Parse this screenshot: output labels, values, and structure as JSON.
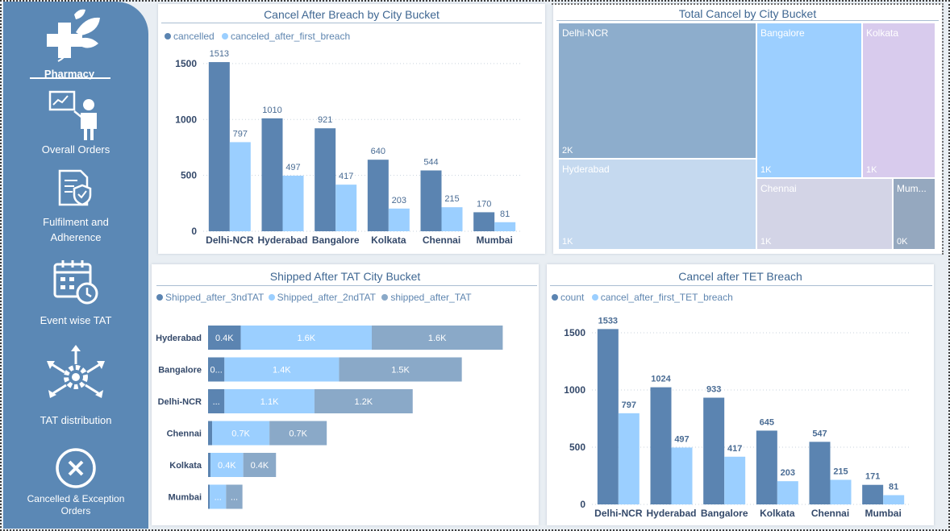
{
  "sidebar": {
    "brand_label": "Pharmacy",
    "items": [
      {
        "label": "Overall Orders",
        "icon": "presentation-person-icon"
      },
      {
        "label": "Fulfilment and Adherence",
        "icon": "shield-document-icon"
      },
      {
        "label": "Event wise TAT",
        "icon": "calendar-clock-icon"
      },
      {
        "label": "TAT  distribution",
        "icon": "gear-arrows-icon"
      },
      {
        "label": "Cancelled & Exception Orders",
        "icon": "cancel-circle-icon"
      }
    ]
  },
  "colors": {
    "dark_blue": "#5b84b1",
    "light_blue": "#9bcfff",
    "grey_blue": "#8aa9c8"
  },
  "panels": {
    "cancel_breach": {
      "title": "Cancel After Breach by City Bucket",
      "legend": [
        "cancelled",
        "canceled_after_first_breach"
      ]
    },
    "total_cancel": {
      "title": "Total Cancel by City Bucket"
    },
    "shipped_tat": {
      "title": "Shipped After TAT City Bucket",
      "legend": [
        "Shipped_after_3ndTAT",
        "Shipped_after_2ndTAT",
        "shipped_after_TAT"
      ]
    },
    "cancel_tet": {
      "title": "Cancel after TET Breach",
      "legend": [
        "count",
        "cancel_after_first_TET_breach"
      ]
    }
  },
  "chart_data": [
    {
      "type": "bar",
      "title": "Cancel After Breach by City Bucket",
      "categories": [
        "Delhi-NCR",
        "Hyderabad",
        "Bangalore",
        "Kolkata",
        "Chennai",
        "Mumbai"
      ],
      "series": [
        {
          "name": "cancelled",
          "values": [
            1513,
            1010,
            921,
            640,
            544,
            170
          ]
        },
        {
          "name": "canceled_after_first_breach",
          "values": [
            797,
            497,
            417,
            203,
            215,
            81
          ]
        }
      ],
      "yticks": [
        "0",
        "500",
        "1000",
        "1500"
      ],
      "ylim": [
        0,
        1600
      ],
      "grid": true,
      "legend": "top-left"
    },
    {
      "type": "treemap",
      "title": "Total Cancel by City Bucket",
      "cells": [
        {
          "name": "Delhi-NCR",
          "label": "2K"
        },
        {
          "name": "Bangalore",
          "label": "1K"
        },
        {
          "name": "Kolkata",
          "label": "1K"
        },
        {
          "name": "Hyderabad",
          "label": "1K"
        },
        {
          "name": "Chennai",
          "label": "1K"
        },
        {
          "name": "Mum...",
          "label": "0K"
        }
      ]
    },
    {
      "type": "bar",
      "orientation": "horizontal",
      "stacked": true,
      "title": "Shipped After TAT City Bucket",
      "categories": [
        "Hyderabad",
        "Bangalore",
        "Delhi-NCR",
        "Chennai",
        "Kolkata",
        "Mumbai"
      ],
      "series": [
        {
          "name": "Shipped_after_3ndTAT",
          "values": [
            0.4,
            0.2,
            0.2,
            0.05,
            0.03,
            0.02
          ],
          "labels": [
            "0.4K",
            "0...",
            "...",
            "",
            "",
            ""
          ]
        },
        {
          "name": "Shipped_after_2ndTAT",
          "values": [
            1.6,
            1.4,
            1.1,
            0.7,
            0.4,
            0.2
          ],
          "labels": [
            "1.6K",
            "1.4K",
            "1.1K",
            "0.7K",
            "0.4K",
            "..."
          ]
        },
        {
          "name": "shipped_after_TAT",
          "values": [
            1.6,
            1.5,
            1.2,
            0.7,
            0.4,
            0.2
          ],
          "labels": [
            "1.6K",
            "1.5K",
            "1.2K",
            "0.7K",
            "0.4K",
            "..."
          ]
        }
      ],
      "legend": "top-left"
    },
    {
      "type": "bar",
      "title": "Cancel after TET Breach",
      "categories": [
        "Delhi-NCR",
        "Hyderabad",
        "Bangalore",
        "Kolkata",
        "Chennai",
        "Mumbai"
      ],
      "series": [
        {
          "name": "count",
          "values": [
            1533,
            1024,
            933,
            645,
            547,
            171
          ]
        },
        {
          "name": "cancel_after_first_TET_breach",
          "values": [
            797,
            497,
            417,
            203,
            215,
            81
          ]
        }
      ],
      "yticks": [
        "0",
        "500",
        "1000",
        "1500"
      ],
      "ylim": [
        0,
        1620
      ],
      "grid": true,
      "legend": "top-left"
    }
  ]
}
